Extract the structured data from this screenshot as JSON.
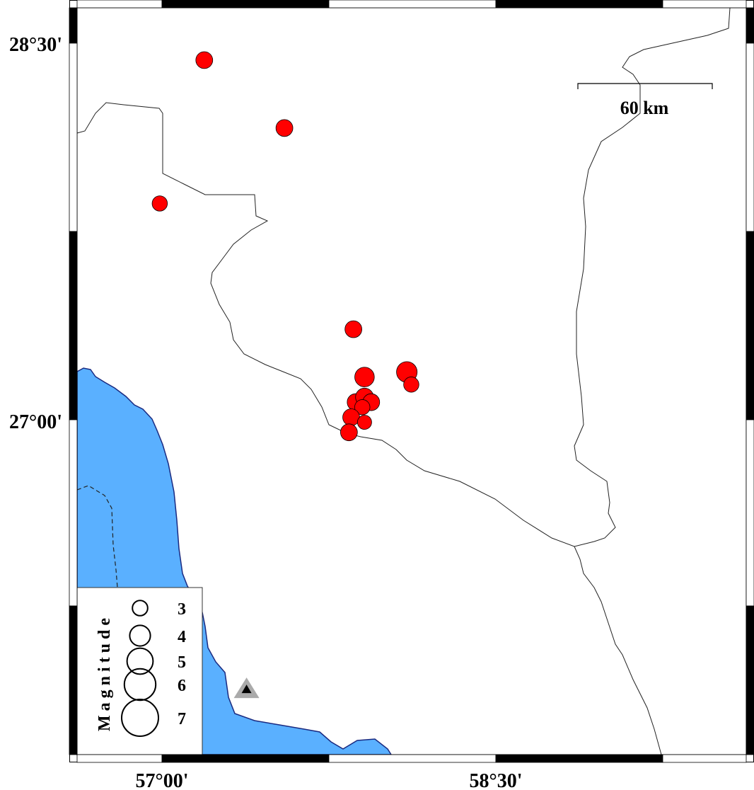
{
  "map": {
    "axis_labels": {
      "lat": [
        "28°30'",
        "27°00'"
      ],
      "lon": [
        "57°00'",
        "58°30'"
      ]
    },
    "scale_bar": {
      "label": "60 km"
    },
    "legend": {
      "title": "Magnitude",
      "entries": [
        "3",
        "4",
        "5",
        "6",
        "7"
      ]
    },
    "colors": {
      "event_fill": "#ff0000",
      "water": "#5ab0ff",
      "coast": "#1a2a80",
      "station_outer": "#aaaaaa",
      "station_inner": "#000000"
    },
    "events": [
      {
        "lon": 57.19,
        "lat": 28.43,
        "mag": 3.3
      },
      {
        "lon": 57.55,
        "lat": 28.16,
        "mag": 3.3
      },
      {
        "lon": 56.99,
        "lat": 27.86,
        "mag": 3.0
      },
      {
        "lon": 57.86,
        "lat": 27.36,
        "mag": 3.3
      },
      {
        "lon": 58.1,
        "lat": 27.19,
        "mag": 4.0
      },
      {
        "lon": 58.12,
        "lat": 27.14,
        "mag": 3.0
      },
      {
        "lon": 57.91,
        "lat": 27.17,
        "mag": 3.8
      },
      {
        "lon": 57.87,
        "lat": 27.07,
        "mag": 3.3
      },
      {
        "lon": 57.91,
        "lat": 27.09,
        "mag": 3.5
      },
      {
        "lon": 57.94,
        "lat": 27.07,
        "mag": 3.3
      },
      {
        "lon": 57.9,
        "lat": 27.05,
        "mag": 3.0
      },
      {
        "lon": 57.85,
        "lat": 27.01,
        "mag": 3.3
      },
      {
        "lon": 57.91,
        "lat": 26.99,
        "mag": 2.8
      },
      {
        "lon": 57.84,
        "lat": 26.95,
        "mag": 3.3
      }
    ],
    "station": {
      "lon": 57.38,
      "lat": 25.93
    }
  }
}
